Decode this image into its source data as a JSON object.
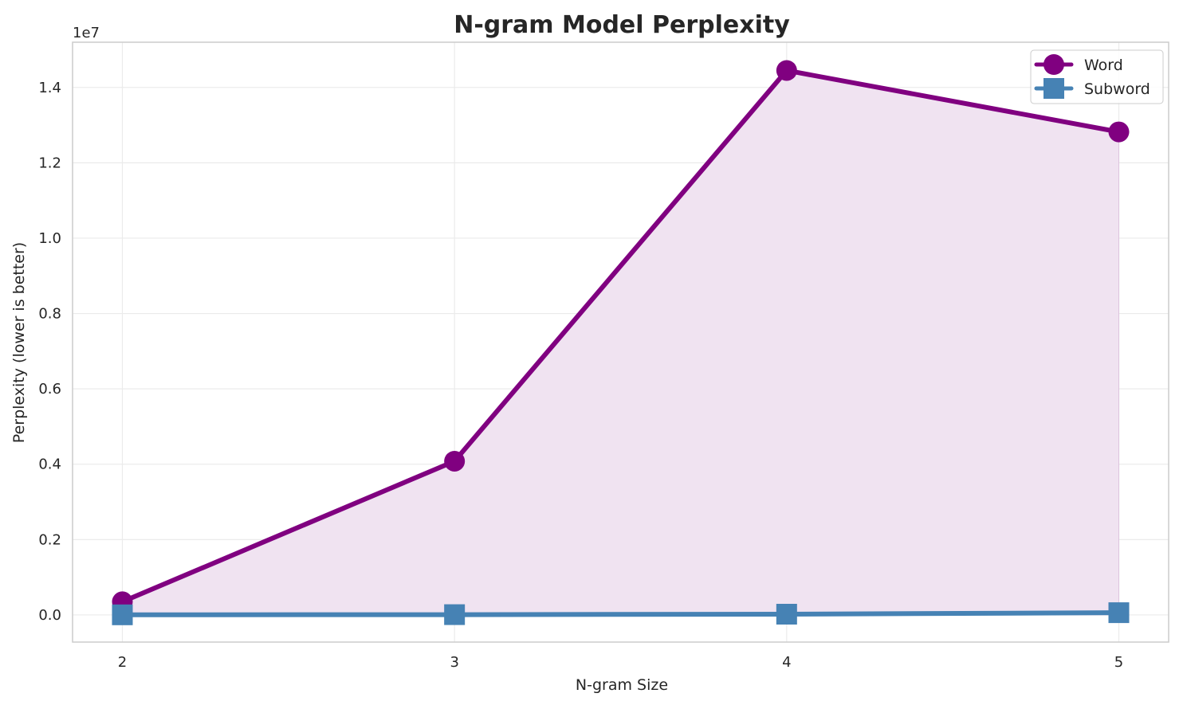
{
  "chart_data": {
    "type": "line",
    "title": "N-gram Model Perplexity",
    "xlabel": "N-gram Size",
    "ylabel": "Perplexity (lower is better)",
    "y_offset_label": "1e7",
    "x": [
      2,
      3,
      4,
      5
    ],
    "x_tick_labels": [
      "2",
      "3",
      "4",
      "5"
    ],
    "y_ticks": [
      0,
      2000000,
      4000000,
      6000000,
      8000000,
      10000000,
      12000000,
      14000000
    ],
    "y_tick_labels": [
      "0.0",
      "0.2",
      "0.4",
      "0.6",
      "0.8",
      "1.0",
      "1.2",
      "1.4"
    ],
    "xlim": [
      1.85,
      5.15
    ],
    "ylim": [
      -720000,
      15200000
    ],
    "grid": true,
    "legend_position": "top-right",
    "series": [
      {
        "name": "Word",
        "values": [
          350000,
          4080000,
          14450000,
          12820000
        ],
        "color": "#800080",
        "marker": "circle",
        "fill_under": true,
        "fill_color": "#f0e3f1"
      },
      {
        "name": "Subword",
        "values": [
          3000,
          8000,
          20000,
          60000
        ],
        "color": "#4682b4",
        "marker": "square",
        "fill_under": false
      }
    ]
  }
}
